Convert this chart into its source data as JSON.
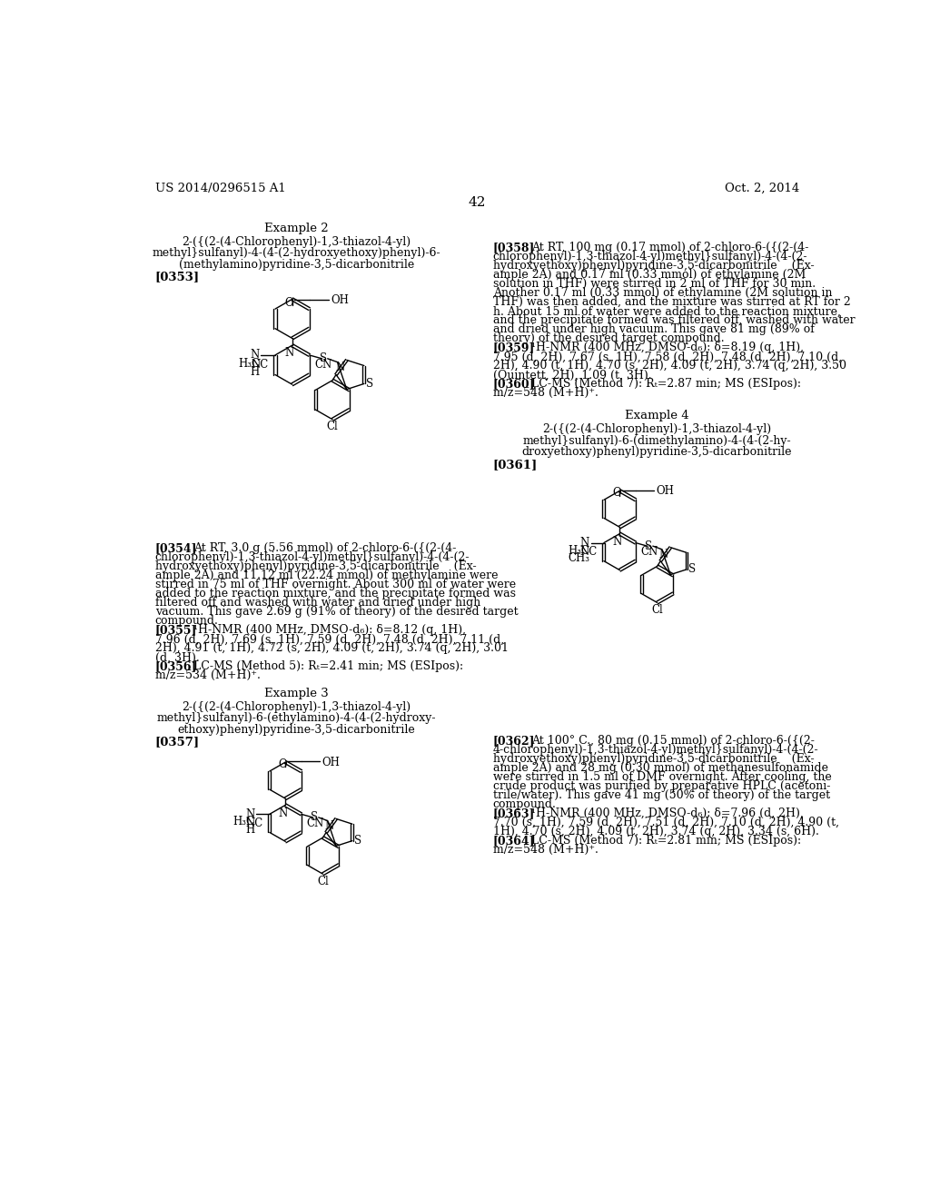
{
  "page_number": "42",
  "header_left": "US 2014/0296515 A1",
  "header_right": "Oct. 2, 2014",
  "background_color": "#ffffff",
  "text_color": "#000000"
}
